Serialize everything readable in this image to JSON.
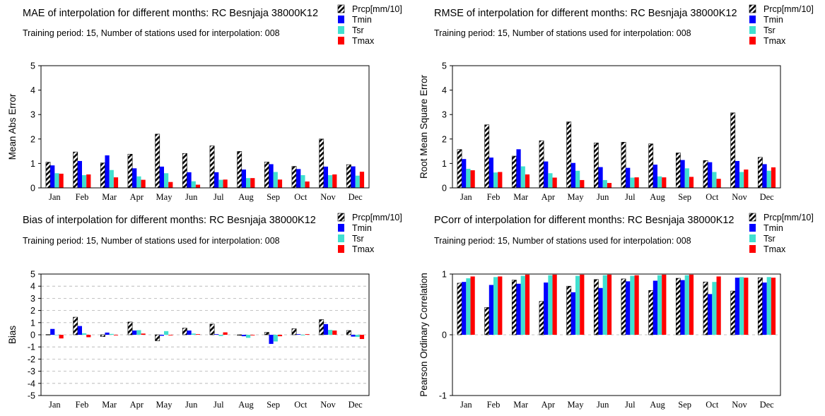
{
  "colors": {
    "Prcp": "hatched-black",
    "Tmin": "#0000ff",
    "Tsr": "#40e0d0",
    "Tmax": "#ff0000",
    "grid": "#b0b0b0"
  },
  "chart_data": [
    {
      "type": "bar",
      "title": "MAE of interpolation for different months: RC Besnjaja  38000K12",
      "subtitle": "Training period: 15, Number of stations used for interpolation: 008",
      "xlabel": "",
      "ylabel": "Mean Abs Error",
      "ylim": [
        0,
        5
      ],
      "yticks": [
        "0",
        "1",
        "2",
        "3",
        "4",
        "5"
      ],
      "grid": false,
      "legend_position": "top-right",
      "categories": [
        "Jan",
        "Feb",
        "Mar",
        "Apr",
        "May",
        "Jun",
        "Jul",
        "Aug",
        "Sep",
        "Oct",
        "Nov",
        "Dec"
      ],
      "series": [
        {
          "name": "Prcp[mm/10]",
          "values": [
            1.05,
            1.47,
            1.02,
            1.38,
            2.2,
            1.41,
            1.72,
            1.49,
            1.06,
            0.88,
            2.0,
            0.95
          ]
        },
        {
          "name": "Tmin",
          "values": [
            0.92,
            1.1,
            1.33,
            0.8,
            0.87,
            0.64,
            0.64,
            0.75,
            0.97,
            0.77,
            0.87,
            0.88
          ]
        },
        {
          "name": "Tsr",
          "values": [
            0.6,
            0.52,
            0.73,
            0.47,
            0.6,
            0.27,
            0.33,
            0.4,
            0.65,
            0.52,
            0.52,
            0.5
          ]
        },
        {
          "name": "Tmax",
          "values": [
            0.58,
            0.55,
            0.43,
            0.33,
            0.24,
            0.13,
            0.34,
            0.4,
            0.34,
            0.26,
            0.55,
            0.66
          ]
        }
      ]
    },
    {
      "type": "bar",
      "title": "RMSE of interpolation for different months: RC Besnjaja  38000K12",
      "subtitle": "Training period: 15, Number of stations used for interpolation: 008",
      "xlabel": "",
      "ylabel": "Root Mean Square Error",
      "ylim": [
        0,
        5
      ],
      "yticks": [
        "0",
        "1",
        "2",
        "3",
        "4",
        "5"
      ],
      "grid": false,
      "legend_position": "top-right",
      "categories": [
        "Jan",
        "Feb",
        "Mar",
        "Apr",
        "May",
        "Jun",
        "Jul",
        "Aug",
        "Sep",
        "Oct",
        "Nov",
        "Dec"
      ],
      "series": [
        {
          "name": "Prcp[mm/10]",
          "values": [
            1.57,
            2.58,
            1.3,
            1.93,
            2.7,
            1.84,
            1.87,
            1.8,
            1.43,
            1.12,
            3.07,
            1.25
          ]
        },
        {
          "name": "Tmin",
          "values": [
            1.18,
            1.24,
            1.58,
            1.08,
            1.02,
            0.85,
            0.82,
            0.95,
            1.14,
            1.05,
            1.1,
            0.97
          ]
        },
        {
          "name": "Tsr",
          "values": [
            0.78,
            0.63,
            0.88,
            0.6,
            0.7,
            0.32,
            0.42,
            0.47,
            0.8,
            0.65,
            0.65,
            0.7
          ]
        },
        {
          "name": "Tmax",
          "values": [
            0.72,
            0.65,
            0.55,
            0.42,
            0.32,
            0.2,
            0.43,
            0.43,
            0.45,
            0.37,
            0.75,
            0.84
          ]
        }
      ]
    },
    {
      "type": "bar",
      "title": "Bias of interpolation for different months: RC Besnjaja  38000K12",
      "subtitle": "Training period: 15, Number of stations used for interpolation: 008",
      "xlabel": "",
      "ylabel": "Bias",
      "ylim": [
        -5,
        5
      ],
      "yticks": [
        "-5",
        "-4",
        "-3",
        "-2",
        "-1",
        "0",
        "1",
        "2",
        "3",
        "4",
        "5"
      ],
      "grid": true,
      "legend_position": "top-right",
      "categories": [
        "Jan",
        "Feb",
        "Mar",
        "Apr",
        "May",
        "Jun",
        "Jul",
        "Aug",
        "Sep",
        "Oct",
        "Nov",
        "Dec"
      ],
      "series": [
        {
          "name": "Prcp[mm/10]",
          "values": [
            0.02,
            1.45,
            -0.15,
            1.05,
            -0.5,
            0.55,
            0.88,
            -0.05,
            0.2,
            0.5,
            1.25,
            0.35
          ]
        },
        {
          "name": "Tmin",
          "values": [
            0.48,
            0.72,
            0.18,
            0.35,
            -0.08,
            0.35,
            0.05,
            -0.12,
            -0.75,
            0.05,
            0.88,
            -0.15
          ]
        },
        {
          "name": "Tsr",
          "values": [
            0.0,
            0.12,
            0.07,
            0.38,
            0.3,
            0.1,
            -0.1,
            -0.25,
            -0.55,
            -0.05,
            0.4,
            -0.18
          ]
        },
        {
          "name": "Tmax",
          "values": [
            -0.3,
            -0.2,
            -0.05,
            0.1,
            -0.05,
            0.05,
            0.2,
            -0.05,
            -0.12,
            0.05,
            0.35,
            -0.35
          ]
        }
      ]
    },
    {
      "type": "bar",
      "title": "PCorr of interpolation for different months: RC Besnjaja  38000K12",
      "subtitle": "Training period: 15, Number of stations used for interpolation: 008",
      "xlabel": "",
      "ylabel": "Pearson Ordinary Correlation",
      "ylim": [
        -1,
        1
      ],
      "yticks": [
        "-1",
        "0",
        "1"
      ],
      "grid": true,
      "legend_position": "top-right",
      "categories": [
        "Jan",
        "Feb",
        "Mar",
        "Apr",
        "May",
        "Jun",
        "Jul",
        "Aug",
        "Sep",
        "Oct",
        "Nov",
        "Dec"
      ],
      "series": [
        {
          "name": "Prcp[mm/10]",
          "values": [
            0.85,
            0.45,
            0.9,
            0.55,
            0.8,
            0.91,
            0.92,
            0.73,
            0.93,
            0.87,
            0.72,
            0.94
          ]
        },
        {
          "name": "Tmin",
          "values": [
            0.87,
            0.82,
            0.84,
            0.86,
            0.7,
            0.77,
            0.88,
            0.89,
            0.9,
            0.67,
            0.94,
            0.86
          ]
        },
        {
          "name": "Tsr",
          "values": [
            0.93,
            0.95,
            0.97,
            0.98,
            0.97,
            0.98,
            0.97,
            0.98,
            0.98,
            0.87,
            0.95,
            0.95
          ]
        },
        {
          "name": "Tmax",
          "values": [
            0.96,
            0.96,
            0.99,
            0.99,
            0.99,
            0.99,
            0.98,
            0.99,
            0.99,
            0.96,
            0.94,
            0.94
          ]
        }
      ]
    }
  ]
}
